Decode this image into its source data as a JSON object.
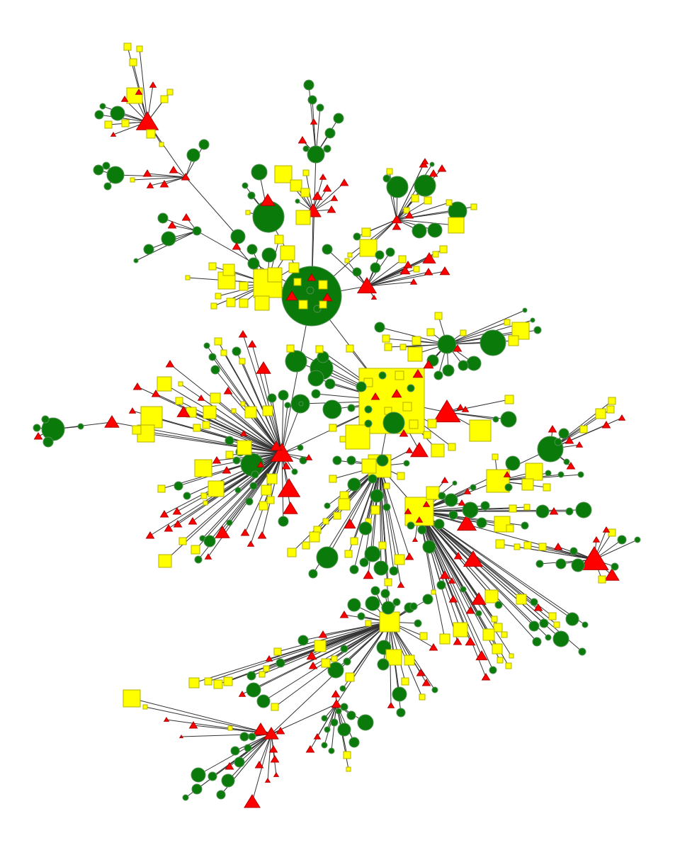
{
  "legend": null,
  "colors": {
    "circle": "#0a7a0a",
    "square": "#ffff00",
    "triangle": "#ff0000",
    "edge": "#333333",
    "background": "#ffffff"
  },
  "node_shapes": [
    "circle",
    "square",
    "triangle"
  ]
}
